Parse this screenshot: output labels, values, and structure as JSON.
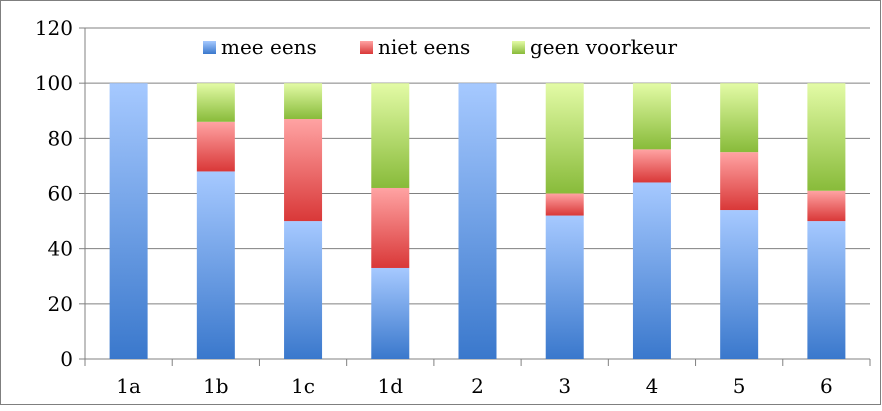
{
  "chart_data": {
    "type": "bar",
    "stacked": true,
    "categories": [
      "1a",
      "1b",
      "1c",
      "1d",
      "2",
      "3",
      "4",
      "5",
      "6"
    ],
    "series": [
      {
        "name": "mee eens",
        "values": [
          100,
          68,
          50,
          33,
          100,
          52,
          64,
          54,
          50
        ]
      },
      {
        "name": "niet eens",
        "values": [
          0,
          18,
          37,
          29,
          0,
          8,
          12,
          21,
          11
        ]
      },
      {
        "name": "geen voorkeur",
        "values": [
          0,
          14,
          13,
          38,
          0,
          40,
          24,
          25,
          39
        ]
      }
    ],
    "ylim": [
      0,
      120
    ],
    "yticks": [
      "0",
      "20",
      "40",
      "60",
      "80",
      "100",
      "120"
    ],
    "grid": true,
    "legend_position": "top",
    "title": "",
    "xlabel": "",
    "ylabel": ""
  },
  "colors": {
    "mee eens": "#4f81bd",
    "niet eens": "#c0504d",
    "geen voorkeur": "#9bbb59"
  }
}
